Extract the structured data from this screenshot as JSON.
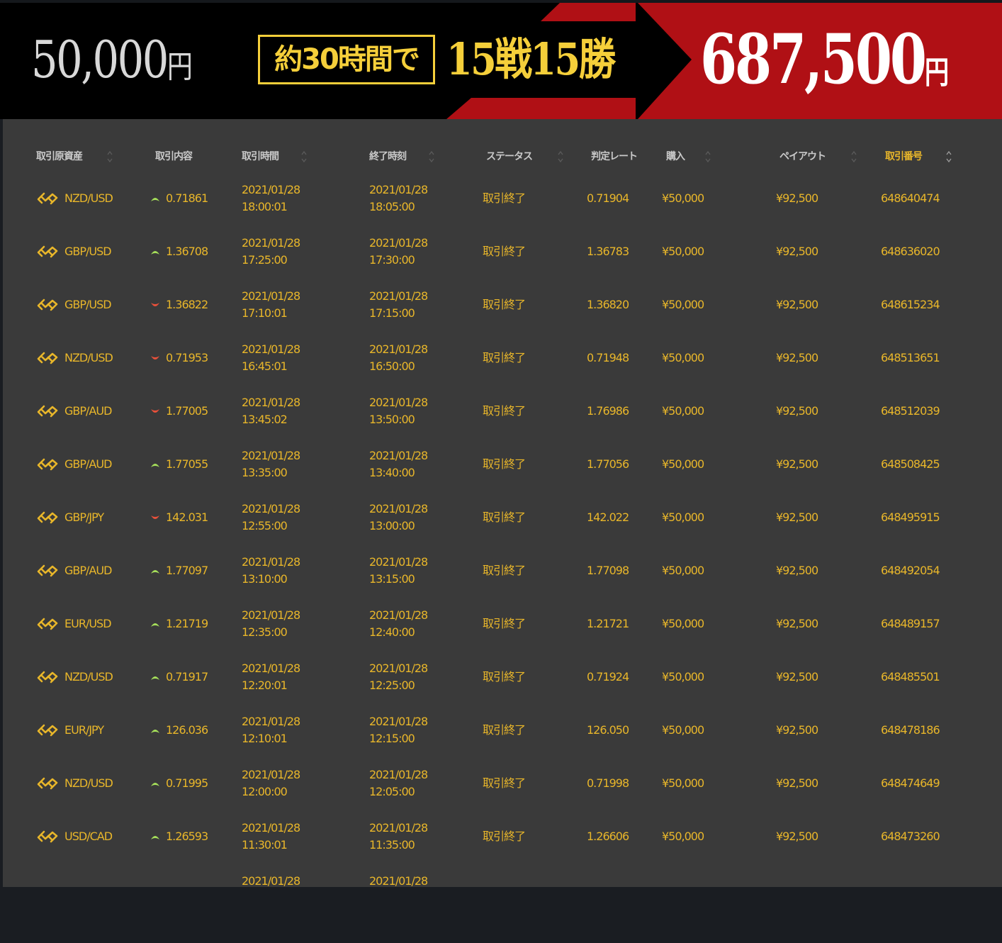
{
  "banner": {
    "start_amount": "50,000",
    "start_unit": "円",
    "duration": "約30時間で",
    "record": "15戦15勝",
    "end_amount": "687,500",
    "end_unit": "円",
    "colors": {
      "red": "#b01015",
      "gold": "#f5cf3a",
      "black": "#000000"
    }
  },
  "table": {
    "headers": [
      {
        "label": "取引原資産",
        "sortable": true
      },
      {
        "label": "取引内容",
        "sortable": false
      },
      {
        "label": "取引時間",
        "sortable": true
      },
      {
        "label": "終了時刻",
        "sortable": true
      },
      {
        "label": "ステータス",
        "sortable": true
      },
      {
        "label": "判定レート",
        "sortable": false
      },
      {
        "label": "購入",
        "sortable": true
      },
      {
        "label": "ペイアウト",
        "sortable": true
      },
      {
        "label": "取引番号",
        "sortable": true,
        "active": true
      }
    ],
    "colors": {
      "text": "#e8b62a",
      "header": "#c9c9c9",
      "up": "#a6e05a",
      "down": "#e8503a",
      "background": "#3a3a3a"
    },
    "rows": [
      {
        "asset": "NZD/USD",
        "direction": "up",
        "entry_rate": "0.71861",
        "start_date": "2021/01/28",
        "start_time": "18:00:01",
        "end_date": "2021/01/28",
        "end_time": "18:05:00",
        "status": "取引終了",
        "judge_rate": "0.71904",
        "purchase": "¥50,000",
        "payout": "¥92,500",
        "trade_id": "648640474"
      },
      {
        "asset": "GBP/USD",
        "direction": "up",
        "entry_rate": "1.36708",
        "start_date": "2021/01/28",
        "start_time": "17:25:00",
        "end_date": "2021/01/28",
        "end_time": "17:30:00",
        "status": "取引終了",
        "judge_rate": "1.36783",
        "purchase": "¥50,000",
        "payout": "¥92,500",
        "trade_id": "648636020"
      },
      {
        "asset": "GBP/USD",
        "direction": "down",
        "entry_rate": "1.36822",
        "start_date": "2021/01/28",
        "start_time": "17:10:01",
        "end_date": "2021/01/28",
        "end_time": "17:15:00",
        "status": "取引終了",
        "judge_rate": "1.36820",
        "purchase": "¥50,000",
        "payout": "¥92,500",
        "trade_id": "648615234"
      },
      {
        "asset": "NZD/USD",
        "direction": "down",
        "entry_rate": "0.71953",
        "start_date": "2021/01/28",
        "start_time": "16:45:01",
        "end_date": "2021/01/28",
        "end_time": "16:50:00",
        "status": "取引終了",
        "judge_rate": "0.71948",
        "purchase": "¥50,000",
        "payout": "¥92,500",
        "trade_id": "648513651"
      },
      {
        "asset": "GBP/AUD",
        "direction": "down",
        "entry_rate": "1.77005",
        "start_date": "2021/01/28",
        "start_time": "13:45:02",
        "end_date": "2021/01/28",
        "end_time": "13:50:00",
        "status": "取引終了",
        "judge_rate": "1.76986",
        "purchase": "¥50,000",
        "payout": "¥92,500",
        "trade_id": "648512039"
      },
      {
        "asset": "GBP/AUD",
        "direction": "up",
        "entry_rate": "1.77055",
        "start_date": "2021/01/28",
        "start_time": "13:35:00",
        "end_date": "2021/01/28",
        "end_time": "13:40:00",
        "status": "取引終了",
        "judge_rate": "1.77056",
        "purchase": "¥50,000",
        "payout": "¥92,500",
        "trade_id": "648508425"
      },
      {
        "asset": "GBP/JPY",
        "direction": "down",
        "entry_rate": "142.031",
        "start_date": "2021/01/28",
        "start_time": "12:55:00",
        "end_date": "2021/01/28",
        "end_time": "13:00:00",
        "status": "取引終了",
        "judge_rate": "142.022",
        "purchase": "¥50,000",
        "payout": "¥92,500",
        "trade_id": "648495915"
      },
      {
        "asset": "GBP/AUD",
        "direction": "up",
        "entry_rate": "1.77097",
        "start_date": "2021/01/28",
        "start_time": "13:10:00",
        "end_date": "2021/01/28",
        "end_time": "13:15:00",
        "status": "取引終了",
        "judge_rate": "1.77098",
        "purchase": "¥50,000",
        "payout": "¥92,500",
        "trade_id": "648492054"
      },
      {
        "asset": "EUR/USD",
        "direction": "up",
        "entry_rate": "1.21719",
        "start_date": "2021/01/28",
        "start_time": "12:35:00",
        "end_date": "2021/01/28",
        "end_time": "12:40:00",
        "status": "取引終了",
        "judge_rate": "1.21721",
        "purchase": "¥50,000",
        "payout": "¥92,500",
        "trade_id": "648489157"
      },
      {
        "asset": "NZD/USD",
        "direction": "up",
        "entry_rate": "0.71917",
        "start_date": "2021/01/28",
        "start_time": "12:20:01",
        "end_date": "2021/01/28",
        "end_time": "12:25:00",
        "status": "取引終了",
        "judge_rate": "0.71924",
        "purchase": "¥50,000",
        "payout": "¥92,500",
        "trade_id": "648485501"
      },
      {
        "asset": "EUR/JPY",
        "direction": "up",
        "entry_rate": "126.036",
        "start_date": "2021/01/28",
        "start_time": "12:10:01",
        "end_date": "2021/01/28",
        "end_time": "12:15:00",
        "status": "取引終了",
        "judge_rate": "126.050",
        "purchase": "¥50,000",
        "payout": "¥92,500",
        "trade_id": "648478186"
      },
      {
        "asset": "NZD/USD",
        "direction": "up",
        "entry_rate": "0.71995",
        "start_date": "2021/01/28",
        "start_time": "12:00:00",
        "end_date": "2021/01/28",
        "end_time": "12:05:00",
        "status": "取引終了",
        "judge_rate": "0.71998",
        "purchase": "¥50,000",
        "payout": "¥92,500",
        "trade_id": "648474649"
      },
      {
        "asset": "USD/CAD",
        "direction": "up",
        "entry_rate": "1.26593",
        "start_date": "2021/01/28",
        "start_time": "11:30:01",
        "end_date": "2021/01/28",
        "end_time": "11:35:00",
        "status": "取引終了",
        "judge_rate": "1.26606",
        "purchase": "¥50,000",
        "payout": "¥92,500",
        "trade_id": "648473260"
      },
      {
        "start_date": "2021/01/28",
        "end_date": "2021/01/28",
        "partial": true
      }
    ]
  }
}
